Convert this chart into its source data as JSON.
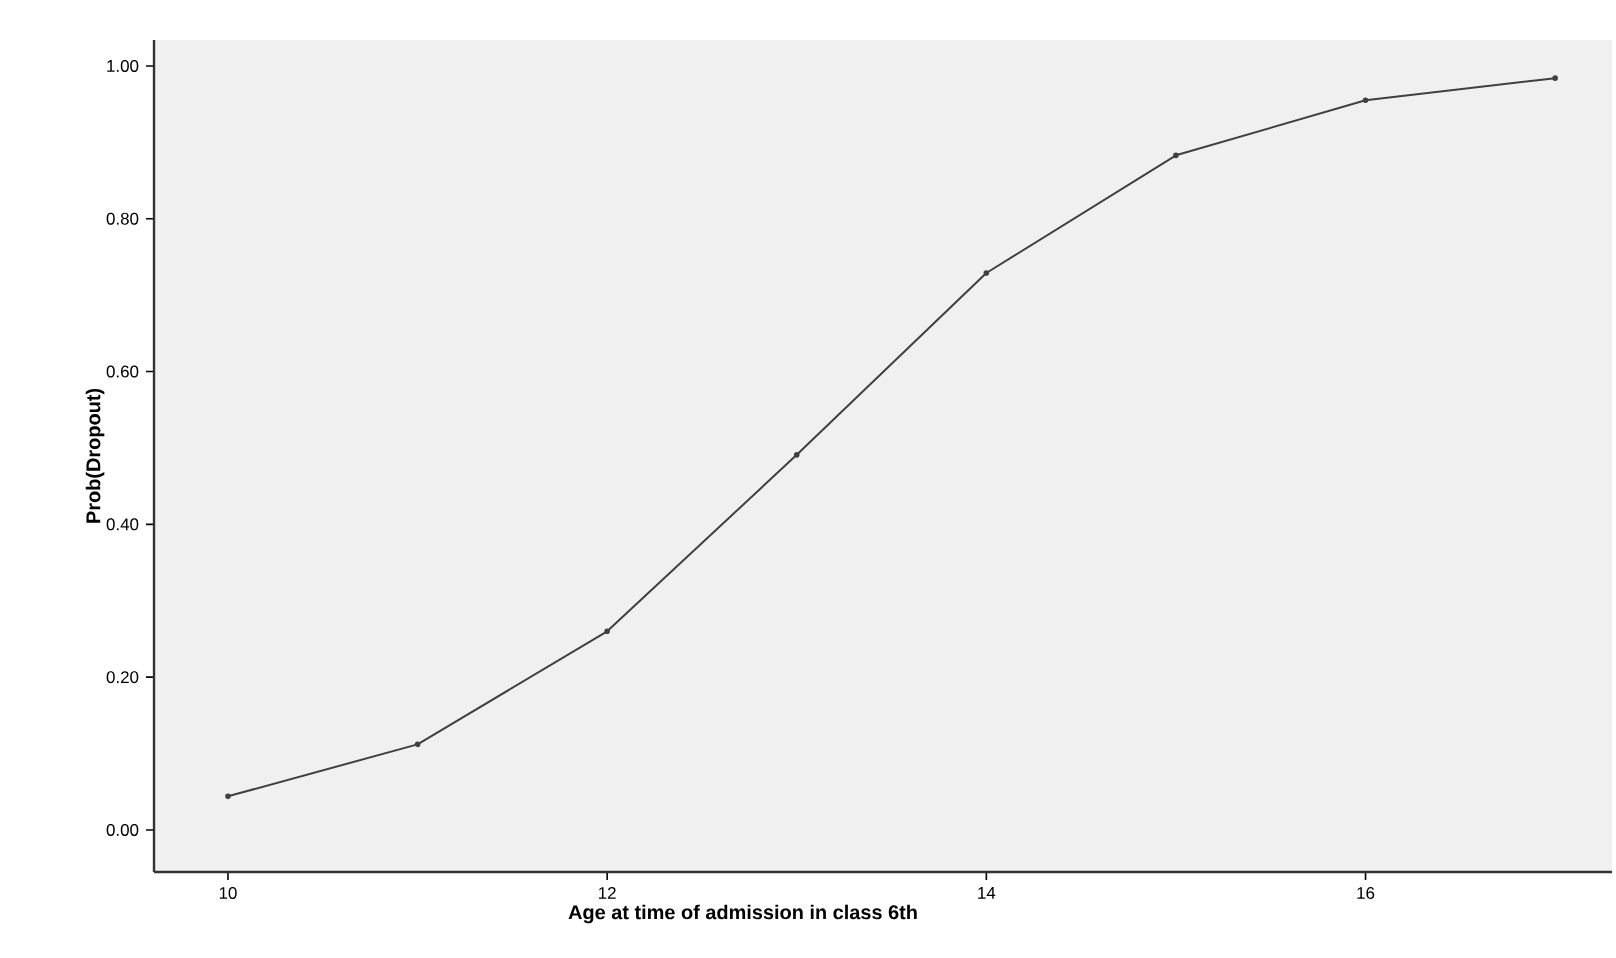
{
  "chart_data": {
    "type": "line",
    "xlabel": "Age at time of admission in class 6th",
    "ylabel": "Prob(Dropout)",
    "x": [
      10,
      11,
      12,
      13,
      14,
      15,
      16,
      17
    ],
    "series": [
      {
        "color": "#404040",
        "values": [
          0.044,
          0.112,
          0.26,
          0.491,
          0.729,
          0.883,
          0.955,
          0.984
        ]
      }
    ],
    "xlim": [
      9.61,
      17.3
    ],
    "ylim": [
      -0.055,
      1.034
    ],
    "xticks": [
      10,
      12,
      14,
      16
    ],
    "yticks": [
      {
        "value": 0,
        "label": "0.00"
      },
      {
        "value": 0.2,
        "label": "0.20"
      },
      {
        "value": 0.4,
        "label": "0.40"
      },
      {
        "value": 0.6,
        "label": "0.60"
      },
      {
        "value": 0.8,
        "label": "0.80"
      },
      {
        "value": 1.0,
        "label": "1.00"
      }
    ],
    "grid": false,
    "marker": "circle",
    "line_style": "solid"
  }
}
